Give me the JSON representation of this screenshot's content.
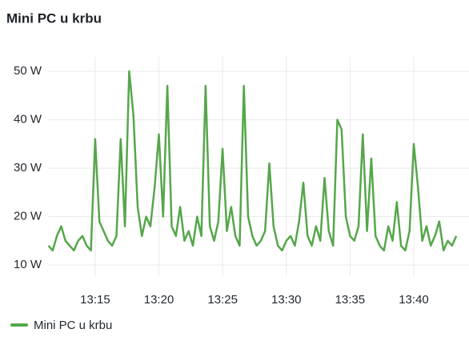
{
  "chart_data": {
    "type": "line",
    "title": "Mini PC u krbu",
    "x": [
      "13:11:20",
      "13:11:40",
      "13:12:00",
      "13:12:20",
      "13:12:40",
      "13:13:00",
      "13:13:20",
      "13:13:40",
      "13:14:00",
      "13:14:20",
      "13:14:40",
      "13:15:00",
      "13:15:20",
      "13:15:40",
      "13:16:00",
      "13:16:20",
      "13:16:40",
      "13:17:00",
      "13:17:20",
      "13:17:40",
      "13:18:00",
      "13:18:20",
      "13:18:40",
      "13:19:00",
      "13:19:20",
      "13:19:40",
      "13:20:00",
      "13:20:20",
      "13:20:40",
      "13:21:00",
      "13:21:20",
      "13:21:40",
      "13:22:00",
      "13:22:20",
      "13:22:40",
      "13:23:00",
      "13:23:20",
      "13:23:40",
      "13:24:00",
      "13:24:20",
      "13:24:40",
      "13:25:00",
      "13:25:20",
      "13:25:40",
      "13:26:00",
      "13:26:20",
      "13:26:40",
      "13:27:00",
      "13:27:20",
      "13:27:40",
      "13:28:00",
      "13:28:20",
      "13:28:40",
      "13:29:00",
      "13:29:20",
      "13:29:40",
      "13:30:00",
      "13:30:20",
      "13:30:40",
      "13:31:00",
      "13:31:20",
      "13:31:40",
      "13:32:00",
      "13:32:20",
      "13:32:40",
      "13:33:00",
      "13:33:20",
      "13:33:40",
      "13:34:00",
      "13:34:20",
      "13:34:40",
      "13:35:00",
      "13:35:20",
      "13:35:40",
      "13:36:00",
      "13:36:20",
      "13:36:40",
      "13:37:00",
      "13:37:20",
      "13:37:40",
      "13:38:00",
      "13:38:20",
      "13:38:40",
      "13:39:00",
      "13:39:20",
      "13:39:40",
      "13:40:00",
      "13:40:20",
      "13:40:40",
      "13:41:00",
      "13:41:20",
      "13:41:40",
      "13:42:00",
      "13:42:20",
      "13:42:40",
      "13:43:00",
      "13:43:20"
    ],
    "series": [
      {
        "name": "Mini PC u krbu",
        "color": "#56a64b",
        "values": [
          14,
          13,
          16,
          18,
          15,
          14,
          13,
          15,
          16,
          14,
          13,
          36,
          19,
          17,
          15,
          14,
          16,
          36,
          18,
          50,
          41,
          22,
          16,
          20,
          18,
          26,
          37,
          20,
          47,
          18,
          16,
          22,
          15,
          17,
          14,
          20,
          16,
          47,
          18,
          15,
          19,
          34,
          17,
          22,
          16,
          14,
          47,
          20,
          16,
          14,
          15,
          17,
          31,
          18,
          14,
          13,
          15,
          16,
          14,
          19,
          27,
          16,
          14,
          18,
          15,
          28,
          17,
          14,
          40,
          38,
          20,
          16,
          15,
          18,
          37,
          17,
          32,
          16,
          14,
          13,
          18,
          15,
          23,
          14,
          13,
          17,
          35,
          26,
          15,
          18,
          14,
          16,
          19,
          13,
          15,
          14,
          16
        ]
      }
    ],
    "xlim": [
      "13:11:18",
      "13:44:20"
    ],
    "xticks": [
      "13:15",
      "13:20",
      "13:25",
      "13:30",
      "13:35",
      "13:40"
    ],
    "ylim": [
      7.7,
      53
    ],
    "yticks": [
      {
        "value": 10,
        "label": "10 W"
      },
      {
        "value": 20,
        "label": "20 W"
      },
      {
        "value": 30,
        "label": "30 W"
      },
      {
        "value": 40,
        "label": "40 W"
      },
      {
        "value": 50,
        "label": "50 W"
      }
    ],
    "grid": true,
    "legend": "bottom"
  }
}
